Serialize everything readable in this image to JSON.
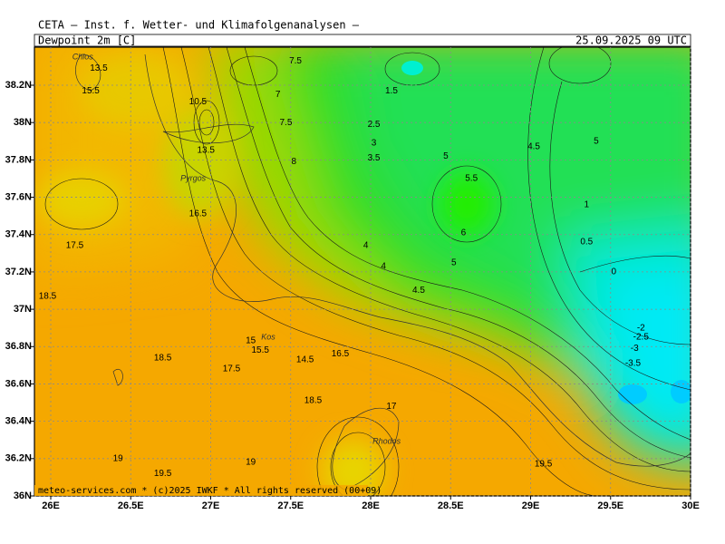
{
  "header": {
    "institute": "CETA – Inst. f. Wetter- und Klimafolgenanalysen –",
    "title": "Dewpoint 2m [C]",
    "date": "25.09.2025 09 UTC"
  },
  "map": {
    "xlim": [
      25.898,
      30
    ],
    "ylim": [
      36,
      38.404
    ],
    "xticks": [
      {
        "value": 26,
        "label": "26E"
      },
      {
        "value": 26.5,
        "label": "26.5E"
      },
      {
        "value": 27,
        "label": "27E"
      },
      {
        "value": 27.5,
        "label": "27.5E"
      },
      {
        "value": 28,
        "label": "28E"
      },
      {
        "value": 28.5,
        "label": "28.5E"
      },
      {
        "value": 29,
        "label": "29E"
      },
      {
        "value": 29.5,
        "label": "29.5E"
      },
      {
        "value": 30,
        "label": "30E"
      }
    ],
    "yticks": [
      {
        "value": 36,
        "label": "36N"
      },
      {
        "value": 36.2,
        "label": "36.2N"
      },
      {
        "value": 36.4,
        "label": "36.4N"
      },
      {
        "value": 36.6,
        "label": "36.6N"
      },
      {
        "value": 36.8,
        "label": "36.8N"
      },
      {
        "value": 37,
        "label": "37N"
      },
      {
        "value": 37.2,
        "label": "37.2N"
      },
      {
        "value": 37.4,
        "label": "37.4N"
      },
      {
        "value": 37.6,
        "label": "37.6N"
      },
      {
        "value": 37.8,
        "label": "37.8N"
      },
      {
        "value": 38,
        "label": "38N"
      },
      {
        "value": 38.2,
        "label": "38.2N"
      }
    ],
    "contour_labels": [
      {
        "lon": 27.53,
        "lat": 38.33,
        "value": 7.5
      },
      {
        "lon": 27.42,
        "lat": 38.15,
        "value": 7
      },
      {
        "lon": 27.47,
        "lat": 38.0,
        "value": 7.5
      },
      {
        "lon": 27.52,
        "lat": 37.79,
        "value": 8
      },
      {
        "lon": 28.02,
        "lat": 37.99,
        "value": 2.5
      },
      {
        "lon": 28.02,
        "lat": 37.89,
        "value": 3
      },
      {
        "lon": 28.02,
        "lat": 37.81,
        "value": 3.5
      },
      {
        "lon": 28.13,
        "lat": 38.17,
        "value": 1.5
      },
      {
        "lon": 28.47,
        "lat": 37.82,
        "value": 5
      },
      {
        "lon": 28.63,
        "lat": 37.7,
        "value": 5.5
      },
      {
        "lon": 28.58,
        "lat": 37.41,
        "value": 6
      },
      {
        "lon": 28.52,
        "lat": 37.25,
        "value": 5
      },
      {
        "lon": 27.97,
        "lat": 37.34,
        "value": 4
      },
      {
        "lon": 28.08,
        "lat": 37.23,
        "value": 4
      },
      {
        "lon": 28.3,
        "lat": 37.1,
        "value": 4.5
      },
      {
        "lon": 29.02,
        "lat": 37.87,
        "value": 4.5
      },
      {
        "lon": 29.41,
        "lat": 37.9,
        "value": 5
      },
      {
        "lon": 29.35,
        "lat": 37.56,
        "value": 1
      },
      {
        "lon": 29.35,
        "lat": 37.36,
        "value": 0.5
      },
      {
        "lon": 29.52,
        "lat": 37.2,
        "value": 0
      },
      {
        "lon": 29.69,
        "lat": 36.9,
        "value": -2
      },
      {
        "lon": 29.69,
        "lat": 36.85,
        "value": -2.5
      },
      {
        "lon": 29.65,
        "lat": 36.79,
        "value": -3
      },
      {
        "lon": 29.64,
        "lat": 36.71,
        "value": -3.5
      },
      {
        "lon": 25.98,
        "lat": 37.07,
        "value": 18.5
      },
      {
        "lon": 26.15,
        "lat": 37.34,
        "value": 17.5
      },
      {
        "lon": 26.7,
        "lat": 36.74,
        "value": 18.5
      },
      {
        "lon": 27.64,
        "lat": 36.51,
        "value": 18.5
      },
      {
        "lon": 26.42,
        "lat": 36.2,
        "value": 19
      },
      {
        "lon": 27.25,
        "lat": 36.18,
        "value": 19
      },
      {
        "lon": 26.7,
        "lat": 36.12,
        "value": 19.5
      },
      {
        "lon": 29.08,
        "lat": 36.17,
        "value": 19.5
      },
      {
        "lon": 26.97,
        "lat": 37.85,
        "value": 13.5
      },
      {
        "lon": 26.92,
        "lat": 38.11,
        "value": 10.5
      },
      {
        "lon": 26.92,
        "lat": 37.51,
        "value": 16.5
      },
      {
        "lon": 26.3,
        "lat": 38.29,
        "value": 13.5
      },
      {
        "lon": 26.25,
        "lat": 38.17,
        "value": 15.5
      },
      {
        "lon": 27.25,
        "lat": 36.83,
        "value": 15
      },
      {
        "lon": 27.31,
        "lat": 36.78,
        "value": 15.5
      },
      {
        "lon": 27.13,
        "lat": 36.68,
        "value": 17.5
      },
      {
        "lon": 27.59,
        "lat": 36.73,
        "value": 14.5
      },
      {
        "lon": 27.81,
        "lat": 36.76,
        "value": 16.5
      },
      {
        "lon": 28.13,
        "lat": 36.48,
        "value": 17
      }
    ],
    "places": [
      {
        "lon": 26.2,
        "lat": 38.35,
        "name": "Chios"
      },
      {
        "lon": 26.89,
        "lat": 37.7,
        "name": "Pyrgos"
      },
      {
        "lon": 27.36,
        "lat": 36.85,
        "name": "Kos"
      },
      {
        "lon": 28.1,
        "lat": 36.29,
        "name": "Rhodos"
      }
    ]
  },
  "footer": "meteo-services.com * (c)2025 IWKF * All rights reserved (00+09)"
}
